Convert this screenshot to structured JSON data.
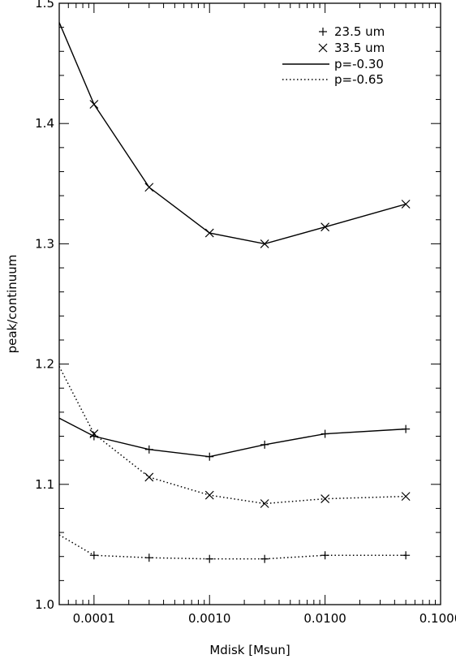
{
  "chart_data": {
    "type": "line",
    "title": "",
    "xlabel": "Mdisk [Msun]",
    "ylabel": "peak/continuum",
    "xscale": "log",
    "xlim": [
      5e-05,
      0.1
    ],
    "ylim": [
      1.0,
      1.5
    ],
    "grid": false,
    "legend_position": "top-right",
    "x_ticks": [
      {
        "value": 0.0001,
        "label": "0.0001"
      },
      {
        "value": 0.001,
        "label": "0.0010"
      },
      {
        "value": 0.01,
        "label": "0.0100"
      },
      {
        "value": 0.1,
        "label": "0.1000"
      }
    ],
    "y_ticks": [
      {
        "value": 1.0,
        "label": "1.0"
      },
      {
        "value": 1.1,
        "label": "1.1"
      },
      {
        "value": 1.2,
        "label": "1.2"
      },
      {
        "value": 1.3,
        "label": "1.3"
      },
      {
        "value": 1.4,
        "label": "1.4"
      },
      {
        "value": 1.5,
        "label": "1.5"
      }
    ],
    "legend": [
      {
        "label": "23.5 um",
        "kind": "marker",
        "marker": "plus"
      },
      {
        "label": "33.5 um",
        "kind": "marker",
        "marker": "x"
      },
      {
        "label": "p=-0.30",
        "kind": "line",
        "linestyle": "solid"
      },
      {
        "label": "p=-0.65",
        "kind": "line",
        "linestyle": "dotted"
      }
    ],
    "series": [
      {
        "wavelength": "33.5 um",
        "p": "p=-0.30",
        "marker": "x",
        "linestyle": "solid",
        "x": [
          5e-05,
          0.0001,
          0.0003,
          0.001,
          0.003,
          0.01,
          0.05
        ],
        "y": [
          1.484,
          1.416,
          1.347,
          1.309,
          1.3,
          1.314,
          1.333
        ]
      },
      {
        "wavelength": "23.5 um",
        "p": "p=-0.30",
        "marker": "plus",
        "linestyle": "solid",
        "x": [
          5e-05,
          0.0001,
          0.0003,
          0.001,
          0.003,
          0.01,
          0.05
        ],
        "y": [
          1.155,
          1.14,
          1.129,
          1.123,
          1.133,
          1.142,
          1.146
        ]
      },
      {
        "wavelength": "33.5 um",
        "p": "p=-0.65",
        "marker": "x",
        "linestyle": "dotted",
        "x": [
          5e-05,
          0.0001,
          0.0003,
          0.001,
          0.003,
          0.01,
          0.05
        ],
        "y": [
          1.198,
          1.142,
          1.106,
          1.091,
          1.084,
          1.088,
          1.09
        ]
      },
      {
        "wavelength": "23.5 um",
        "p": "p=-0.65",
        "marker": "plus",
        "linestyle": "dotted",
        "x": [
          5e-05,
          0.0001,
          0.0003,
          0.001,
          0.003,
          0.01,
          0.05
        ],
        "y": [
          1.058,
          1.041,
          1.039,
          1.038,
          1.038,
          1.041,
          1.041
        ]
      }
    ]
  }
}
